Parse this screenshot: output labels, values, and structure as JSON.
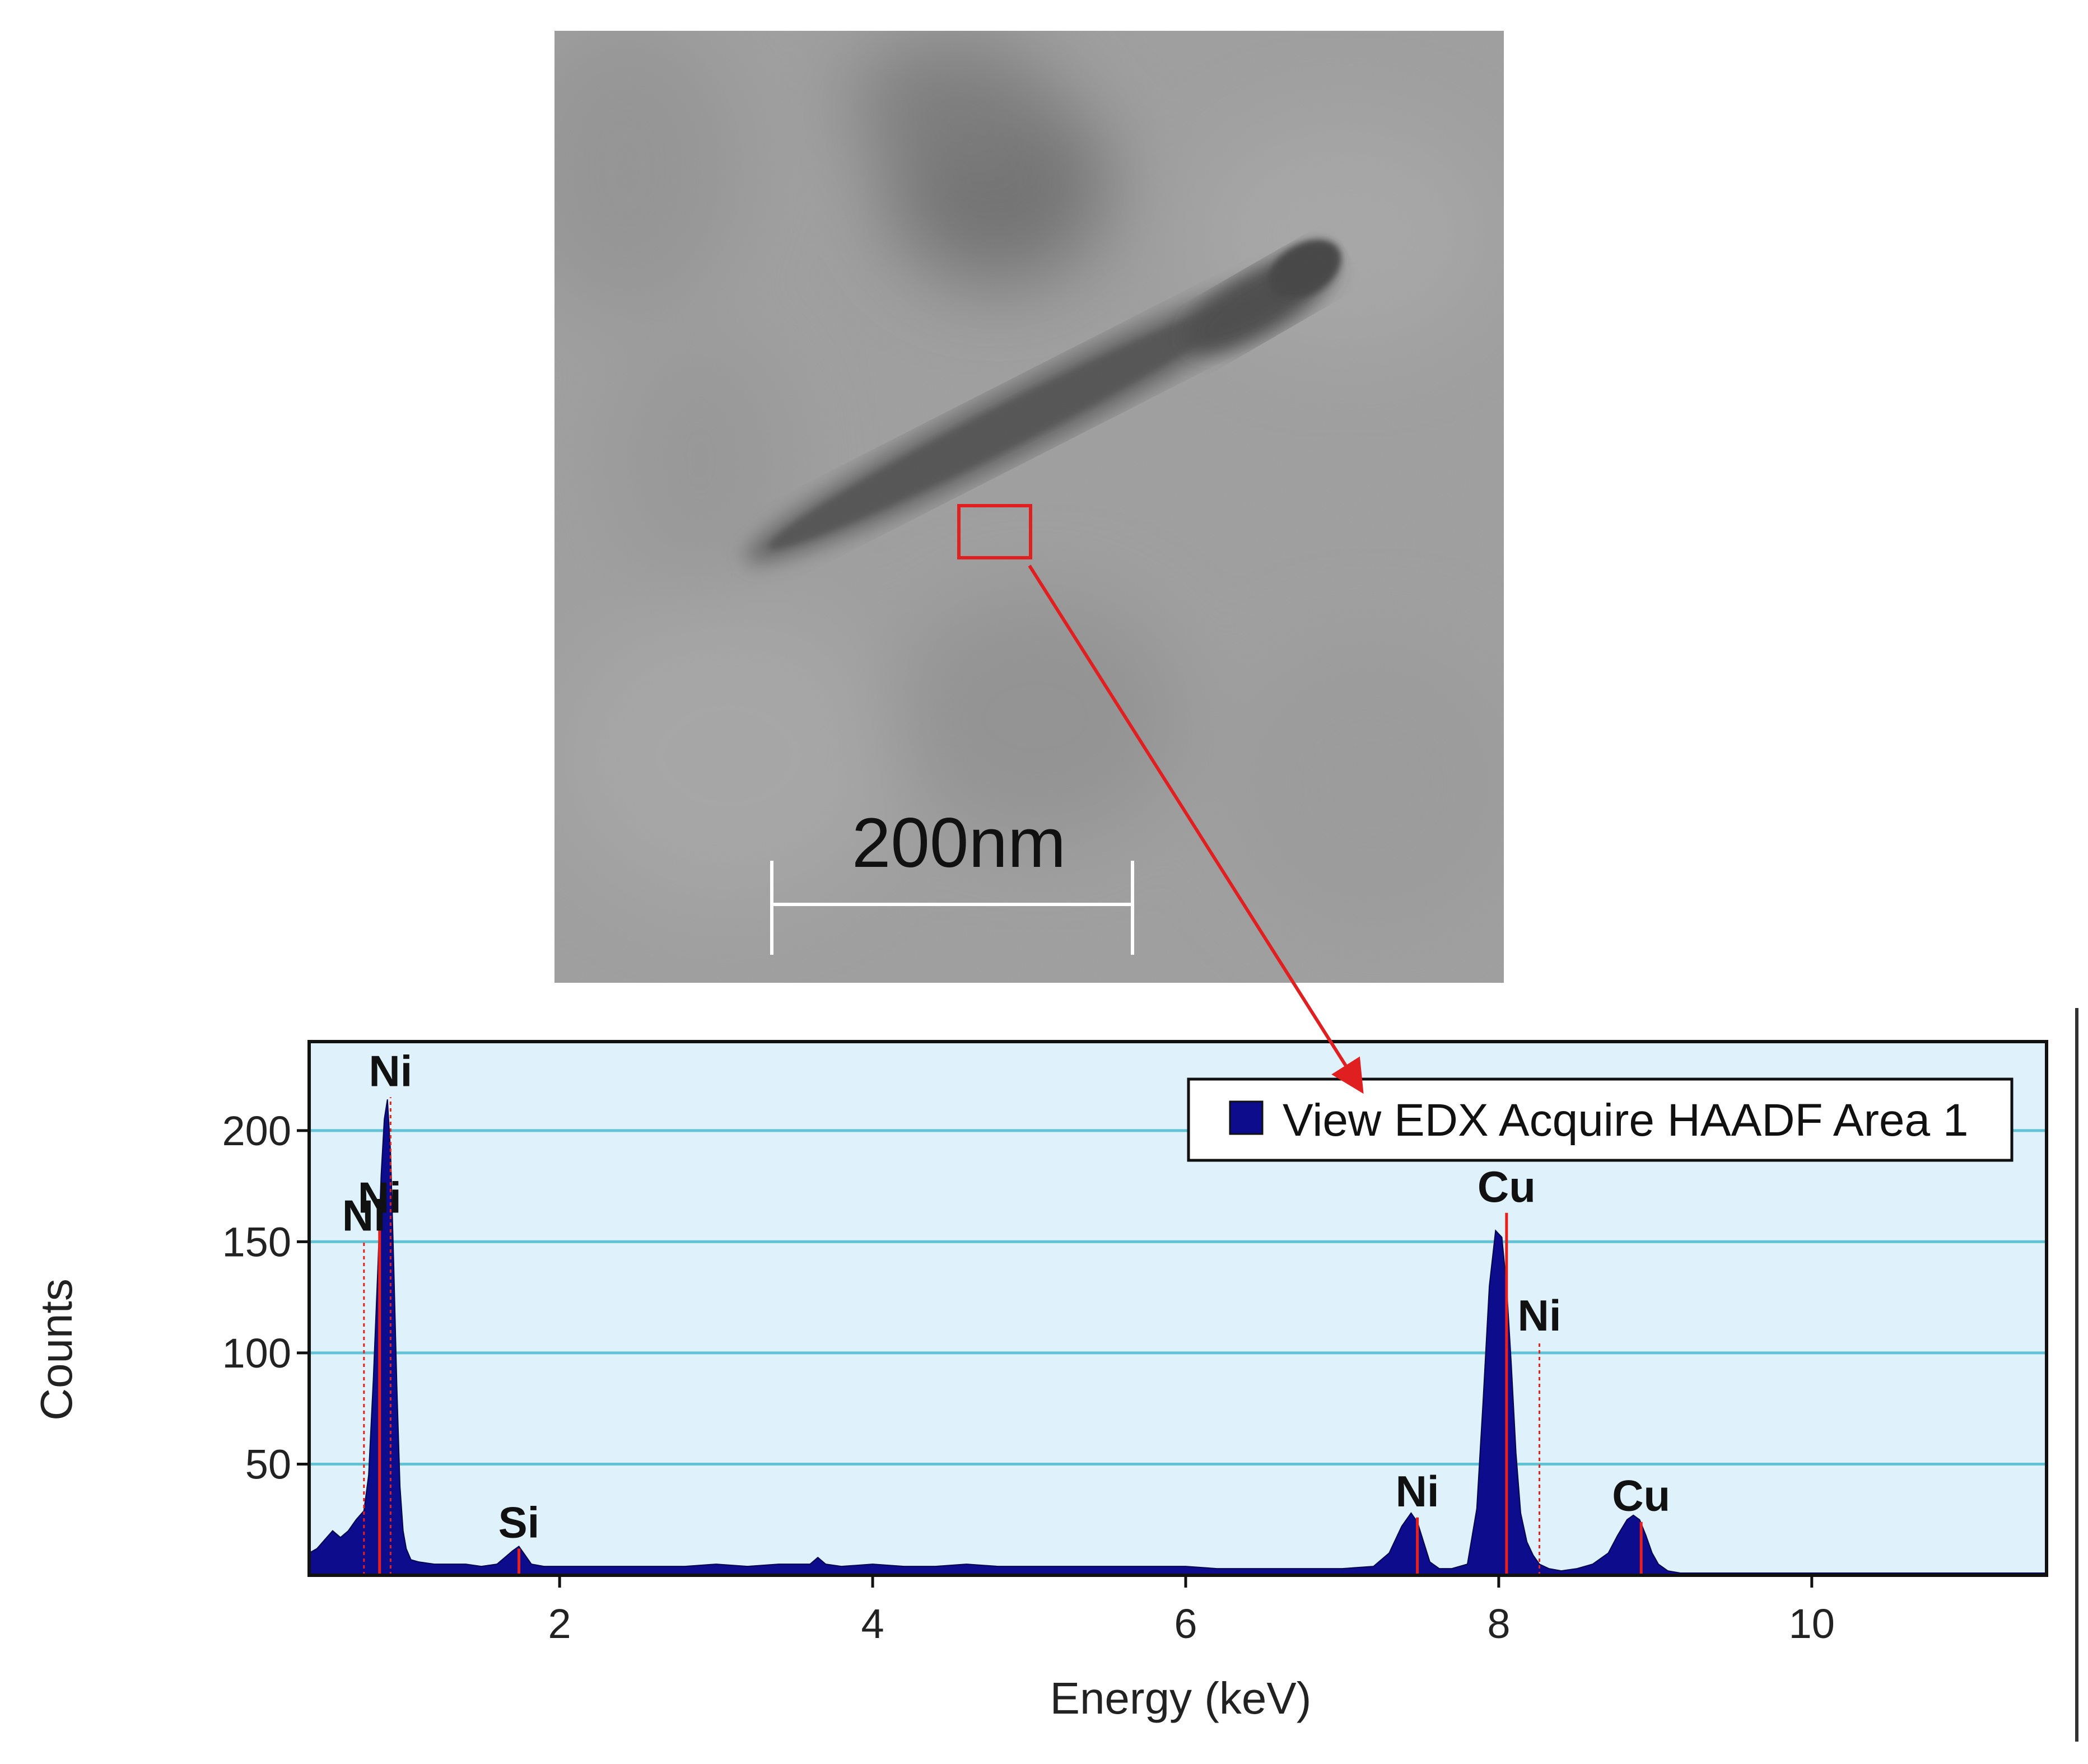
{
  "micrograph": {
    "scale_bar_label": "200nm",
    "selection_box_color": "#e02020",
    "arrow_color": "#e02020"
  },
  "chart_data": {
    "type": "area",
    "xlabel": "Energy (keV)",
    "ylabel": "Counts",
    "xlim": [
      0.4,
      11.5
    ],
    "ylim": [
      0,
      240
    ],
    "x_ticks": [
      2,
      4,
      6,
      8,
      10
    ],
    "y_ticks": [
      50,
      100,
      150,
      200
    ],
    "grid": "horizontal",
    "legend_position": "top-right",
    "background_color": "#dff1fa",
    "gridline_color": "#62c3d7",
    "series": [
      {
        "name": "View EDX Acquire HAADF Area 1",
        "color": "#0c0c8c",
        "x": [
          0.4,
          0.45,
          0.5,
          0.55,
          0.6,
          0.65,
          0.7,
          0.75,
          0.78,
          0.81,
          0.84,
          0.86,
          0.88,
          0.9,
          0.92,
          0.94,
          0.96,
          0.98,
          1.0,
          1.02,
          1.05,
          1.1,
          1.2,
          1.3,
          1.4,
          1.5,
          1.6,
          1.65,
          1.7,
          1.74,
          1.78,
          1.82,
          1.9,
          2.0,
          2.2,
          2.4,
          2.6,
          2.8,
          3.0,
          3.2,
          3.4,
          3.6,
          3.65,
          3.7,
          3.8,
          4.0,
          4.2,
          4.4,
          4.6,
          4.8,
          5.0,
          5.2,
          5.4,
          5.6,
          5.8,
          6.0,
          6.2,
          6.4,
          6.6,
          6.8,
          7.0,
          7.2,
          7.3,
          7.38,
          7.44,
          7.48,
          7.52,
          7.56,
          7.62,
          7.7,
          7.8,
          7.86,
          7.9,
          7.94,
          7.98,
          8.02,
          8.05,
          8.08,
          8.11,
          8.14,
          8.18,
          8.22,
          8.26,
          8.32,
          8.4,
          8.5,
          8.6,
          8.7,
          8.76,
          8.82,
          8.86,
          8.9,
          8.94,
          8.98,
          9.02,
          9.08,
          9.16,
          9.26,
          9.4,
          9.6,
          9.8,
          10.0,
          10.4,
          10.8,
          11.2,
          11.5
        ],
        "values": [
          10,
          12,
          16,
          20,
          17,
          20,
          25,
          29,
          45,
          88,
          140,
          180,
          205,
          214,
          190,
          140,
          85,
          40,
          20,
          12,
          7,
          6,
          5,
          5,
          5,
          4,
          5,
          8,
          11,
          13,
          9,
          5,
          4,
          4,
          4,
          4,
          4,
          4,
          5,
          4,
          5,
          5,
          8,
          5,
          4,
          5,
          4,
          4,
          5,
          4,
          4,
          4,
          4,
          4,
          4,
          4,
          3,
          3,
          3,
          3,
          3,
          4,
          10,
          22,
          28,
          24,
          15,
          6,
          3,
          3,
          5,
          30,
          78,
          130,
          155,
          152,
          130,
          95,
          55,
          28,
          15,
          9,
          5,
          3,
          2,
          3,
          5,
          10,
          18,
          25,
          27,
          25,
          18,
          10,
          5,
          2,
          1,
          1,
          1,
          1,
          1,
          1,
          1,
          1,
          1,
          1
        ]
      }
    ],
    "peak_labels": [
      {
        "label": "Ni",
        "energy": 0.92,
        "marker_height": 215,
        "marker": "dotted"
      },
      {
        "label": "Ni",
        "energy": 0.85,
        "marker_height": 158,
        "marker": "solid"
      },
      {
        "label": "Ni",
        "energy": 0.75,
        "marker_height": 150,
        "marker": "dotted"
      },
      {
        "label": "Si",
        "energy": 1.74,
        "marker_height": 12,
        "marker": "solid"
      },
      {
        "label": "Ni",
        "energy": 7.48,
        "marker_height": 26,
        "marker": "solid"
      },
      {
        "label": "Cu",
        "energy": 8.05,
        "marker_height": 163,
        "marker": "solid"
      },
      {
        "label": "Ni",
        "energy": 8.26,
        "marker_height": 105,
        "marker": "dotted"
      },
      {
        "label": "Cu",
        "energy": 8.91,
        "marker_height": 24,
        "marker": "solid"
      }
    ]
  }
}
